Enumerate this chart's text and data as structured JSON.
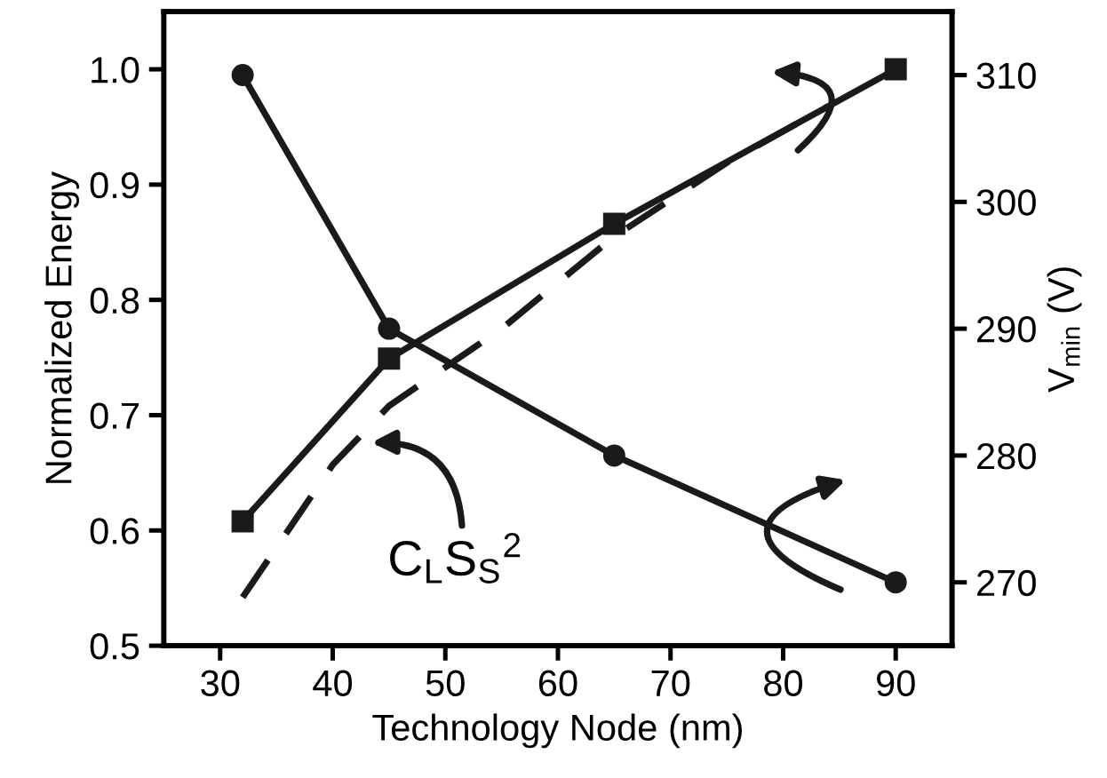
{
  "chart_data": {
    "type": "line",
    "xlabel": "Technology Node (nm)",
    "ylabel": "Normalized Energy",
    "y2label": "V$_{min}$ (V)",
    "xlim": [
      25,
      95
    ],
    "xticks": [
      30,
      40,
      50,
      60,
      70,
      80,
      90
    ],
    "ylim": [
      0.5,
      1.05
    ],
    "yticks": [
      0.5,
      0.6,
      0.7,
      0.8,
      0.9,
      {
        "value": 1.0,
        "label": "1.0"
      }
    ],
    "y2lim": [
      265,
      315
    ],
    "y2ticks": [
      270,
      280,
      290,
      300,
      310
    ],
    "grid": false,
    "legend": false,
    "series": [
      {
        "color": "#1a1a1a",
        "x": [
          32,
          45,
          65,
          90
        ],
        "values": [
          0.608,
          0.749,
          0.866,
          1.0
        ],
        "marker": "square",
        "line_style": "solid"
      },
      {
        "color": "#1a1a1a",
        "x": [
          32,
          45,
          65,
          90
        ],
        "values": [
          310,
          290,
          280,
          270
        ],
        "marker": "circle",
        "line_style": "solid",
        "axis": "y2"
      },
      {
        "color": "#1a1a1a",
        "x": [
          32,
          40,
          45,
          55,
          65,
          75,
          84
        ],
        "values": [
          0.542,
          0.657,
          0.708,
          0.775,
          0.855,
          0.919,
          0.968
        ],
        "marker": "none",
        "line_style": "dashed"
      }
    ],
    "annotations": [
      "C$_{L}$S$_{S}$$^{2}$"
    ]
  }
}
